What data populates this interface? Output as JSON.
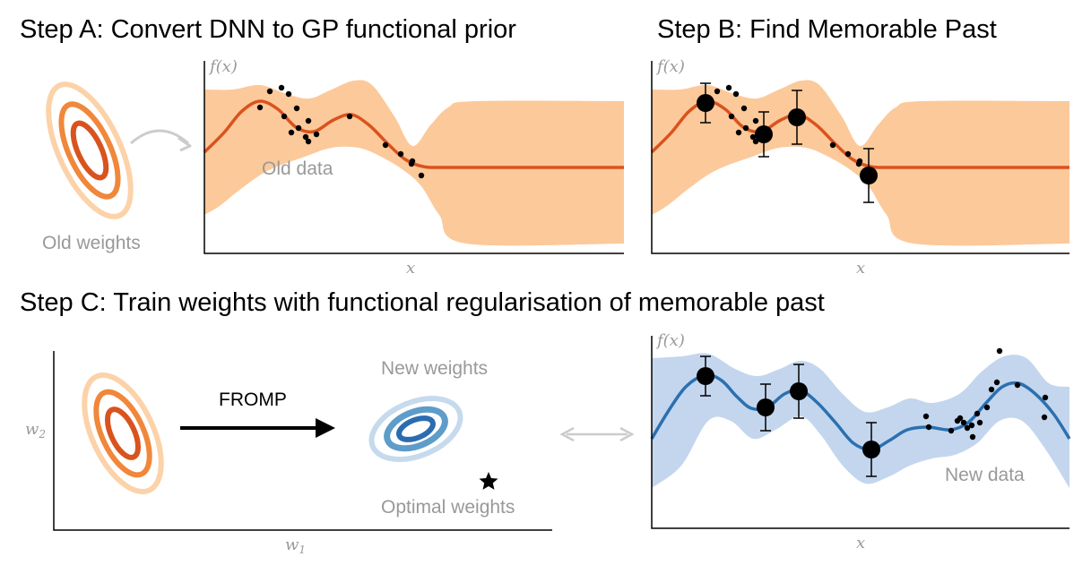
{
  "step_a": {
    "title": "Step A: Convert DNN to GP functional prior",
    "old_weights_label": "Old weights",
    "old_data_label": "Old data",
    "ylabel": "f(x)",
    "xlabel": "x"
  },
  "step_b": {
    "title": "Step B: Find Memorable Past",
    "ylabel": "f(x)",
    "xlabel": "x"
  },
  "step_c": {
    "title": "Step C: Train weights with functional regularisation of memorable past",
    "method_label": "FROMP",
    "new_weights_label": "New weights",
    "optimal_weights_label": "Optimal weights",
    "new_data_label": "New data",
    "ylabel": "f(x)",
    "xlabel": "x",
    "weight_x_label": "w1",
    "weight_y_label": "w2"
  },
  "colors": {
    "old_mean": "#d9531e",
    "old_band": "#fcc99a",
    "new_mean": "#2b70b0",
    "new_band": "#c3d6ee",
    "fromp_text": "#d6341f",
    "old_ellipses": [
      "#fcd2a9",
      "#f0873a",
      "#d9531e"
    ],
    "new_ellipses": [
      "#c6daee",
      "#5e9cc9",
      "#2b6cb0"
    ]
  },
  "icons": [
    "curved-arrow-icon",
    "right-arrow-icon",
    "double-arrow-icon",
    "star-icon"
  ]
}
